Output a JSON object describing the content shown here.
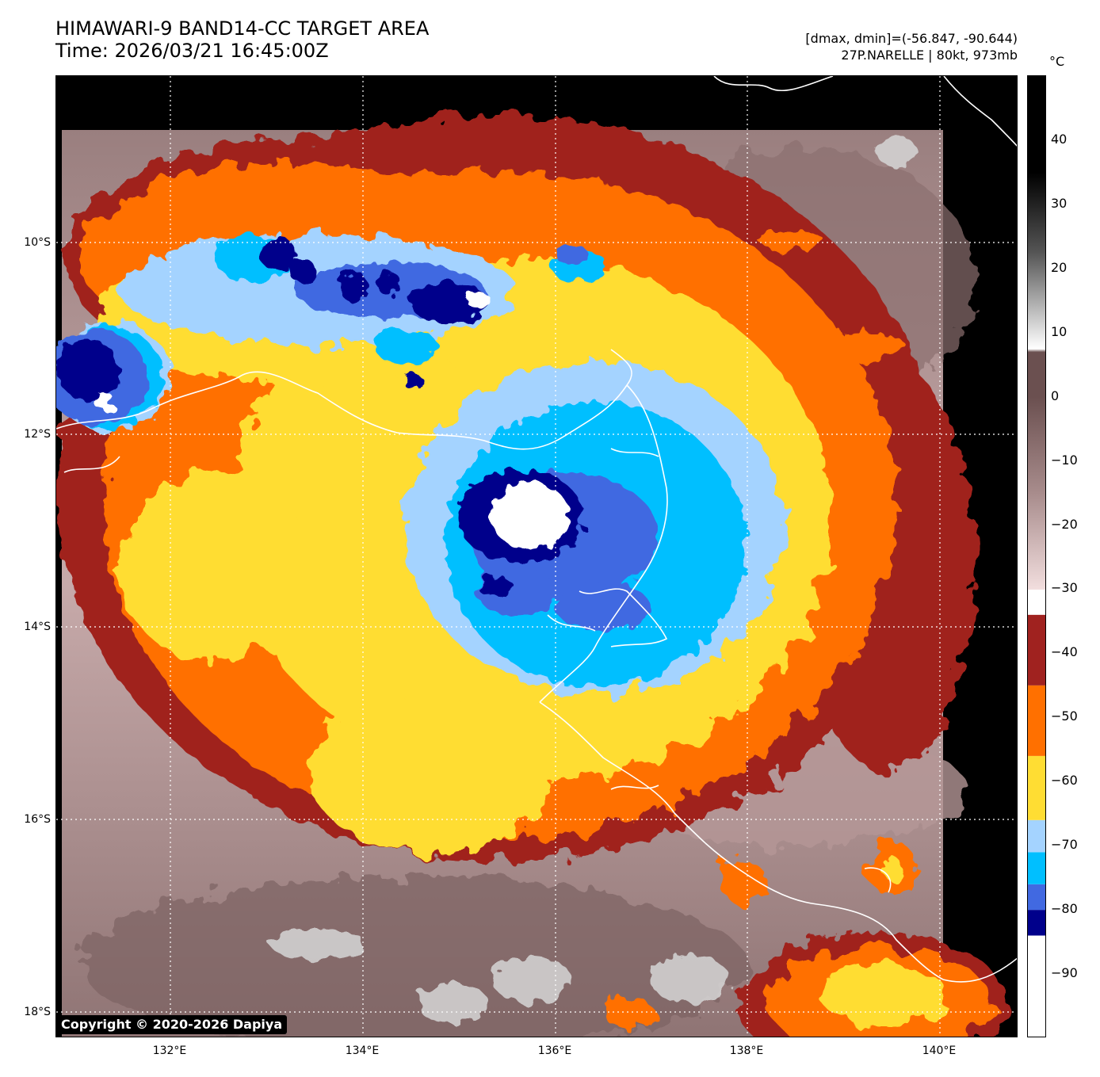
{
  "title": {
    "line1": "HIMAWARI-9 BAND14-CC TARGET AREA",
    "line2": "Time: 2026/03/21 16:45:00Z"
  },
  "info": {
    "line1": "[dmax, dmin]=(-56.847, -90.644)",
    "line2": "27P.NARELLE | 80kt, 973mb"
  },
  "copyright": "Copyright © 2020-2026 Dapiya",
  "map": {
    "lon_min": 130.8,
    "lon_max": 140.8,
    "lat_max": -8.3,
    "lat_min": -18.3,
    "lat_ticks": [
      {
        "value": -10,
        "label": "10°S"
      },
      {
        "value": -12,
        "label": "12°S"
      },
      {
        "value": -14,
        "label": "14°S"
      },
      {
        "value": -16,
        "label": "16°S"
      },
      {
        "value": -18,
        "label": "18°S"
      }
    ],
    "lon_ticks": [
      {
        "value": 132,
        "label": "132°E"
      },
      {
        "value": 134,
        "label": "134°E"
      },
      {
        "value": 136,
        "label": "136°E"
      },
      {
        "value": 138,
        "label": "138°E"
      },
      {
        "value": 140,
        "label": "140°E"
      }
    ],
    "storm_center": {
      "lon": 135.9,
      "lat": -12.9
    }
  },
  "colorbar": {
    "unit": "°C",
    "vmin": -100,
    "vmax": 50,
    "ticks": [
      {
        "value": 40,
        "label": "40"
      },
      {
        "value": 30,
        "label": "30"
      },
      {
        "value": 20,
        "label": "20"
      },
      {
        "value": 10,
        "label": "10"
      },
      {
        "value": 0,
        "label": "0"
      },
      {
        "value": -10,
        "label": "−10"
      },
      {
        "value": -20,
        "label": "−20"
      },
      {
        "value": -30,
        "label": "−30"
      },
      {
        "value": -40,
        "label": "−40"
      },
      {
        "value": -50,
        "label": "−50"
      },
      {
        "value": -60,
        "label": "−60"
      },
      {
        "value": -70,
        "label": "−70"
      },
      {
        "value": -80,
        "label": "−80"
      },
      {
        "value": -90,
        "label": "−90"
      }
    ],
    "bands": [
      {
        "from": -100,
        "to": -84,
        "color": "#ffffff"
      },
      {
        "from": -84,
        "to": -80,
        "color": "#00008b"
      },
      {
        "from": -80,
        "to": -76,
        "color": "#4169e1"
      },
      {
        "from": -76,
        "to": -71,
        "color": "#00bfff"
      },
      {
        "from": -71,
        "to": -66,
        "color": "#a4d3ff"
      },
      {
        "from": -66,
        "to": -56,
        "color": "#ffdd33"
      },
      {
        "from": -56,
        "to": -45,
        "color": "#ff7000"
      },
      {
        "from": -45,
        "to": -34,
        "color": "#a0221f"
      }
    ]
  }
}
